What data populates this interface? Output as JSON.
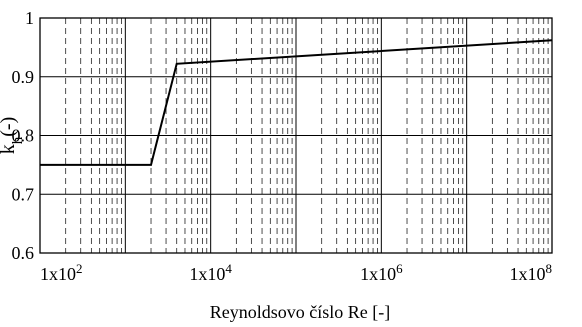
{
  "chart_data": {
    "type": "line",
    "title": "",
    "xlabel": "Reynoldsovo číslo Re [-]",
    "ylabel_main": "k",
    "ylabel_sub": "h",
    "ylabel_tail": "(-)",
    "x_scale": "log10",
    "xlim": [
      100,
      100000000
    ],
    "ylim": [
      0.6,
      1.0
    ],
    "grid": true,
    "x_ticks": [
      {
        "value": 100,
        "base": "1x10",
        "exp": "2"
      },
      {
        "value": 10000,
        "base": "1x10",
        "exp": "4"
      },
      {
        "value": 1000000,
        "base": "1x10",
        "exp": "6"
      },
      {
        "value": 100000000,
        "base": "1x10",
        "exp": "8"
      }
    ],
    "y_ticks": [
      {
        "value": 0.6,
        "label": "0.6"
      },
      {
        "value": 0.7,
        "label": "0.7"
      },
      {
        "value": 0.8,
        "label": "0.8"
      },
      {
        "value": 0.9,
        "label": "0.9"
      },
      {
        "value": 1.0,
        "label": "1"
      }
    ],
    "series": [
      {
        "color": "#000000",
        "x": [
          100,
          2000,
          4000,
          100000000
        ],
        "y": [
          0.75,
          0.75,
          0.922,
          0.962
        ]
      }
    ]
  }
}
